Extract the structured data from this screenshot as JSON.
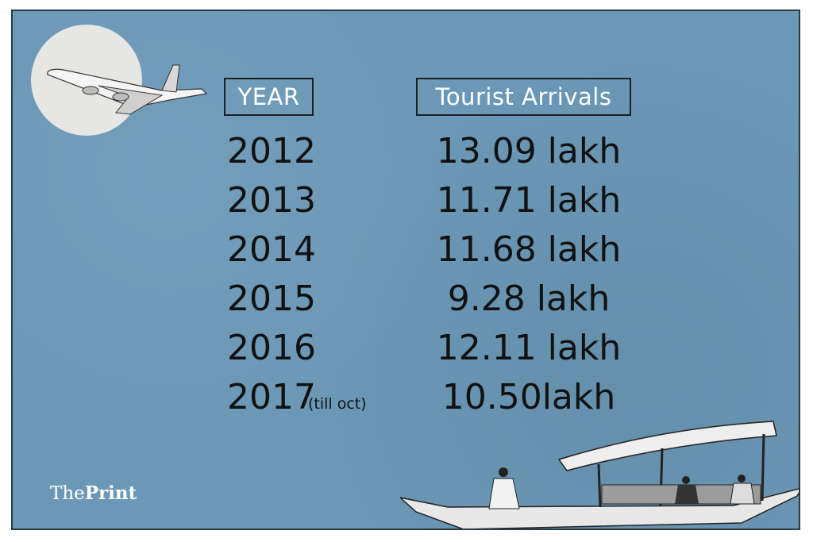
{
  "chart_data": {
    "type": "table",
    "columns": [
      "YEAR",
      "Tourist Arrivals"
    ],
    "rows": [
      {
        "year": "2012",
        "note": "",
        "arrivals": "13.09 lakh"
      },
      {
        "year": "2013",
        "note": "",
        "arrivals": "11.71 lakh"
      },
      {
        "year": "2014",
        "note": "",
        "arrivals": "11.68 lakh"
      },
      {
        "year": "2015",
        "note": "",
        "arrivals": "9.28 lakh"
      },
      {
        "year": "2016",
        "note": "",
        "arrivals": "12.11 lakh"
      },
      {
        "year": "2017",
        "note": "(till oct)",
        "arrivals": "10.50lakh"
      }
    ]
  },
  "branding": {
    "logo_light": "The",
    "logo_bold": "Print"
  },
  "colors": {
    "background": "#6b98b6",
    "text": "#111111",
    "header_text": "#ffffff"
  },
  "icons": [
    "airplane-icon",
    "shikara-boat-icon"
  ]
}
